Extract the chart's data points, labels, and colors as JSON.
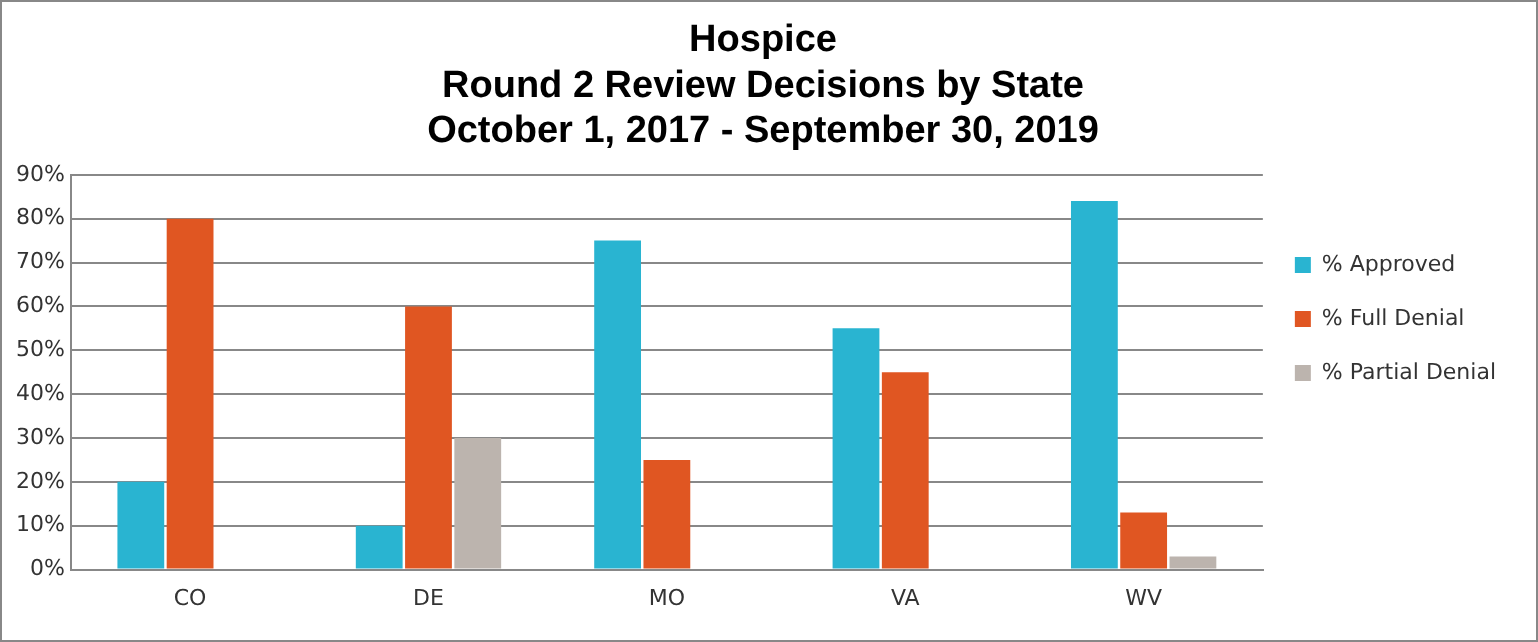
{
  "chart_data": {
    "type": "bar",
    "title": "Hospice\nRound 2 Review Decisions by State\nOctober 1, 2017 - September 30, 2019",
    "categories": [
      "CO",
      "DE",
      "MO",
      "VA",
      "WV"
    ],
    "series": [
      {
        "name": "% Approved",
        "color": "#29b4d1",
        "values": [
          20,
          10,
          75,
          55,
          84
        ]
      },
      {
        "name": "% Full Denial",
        "color": "#e05622",
        "values": [
          80,
          60,
          25,
          45,
          13
        ]
      },
      {
        "name": "% Partial Denial",
        "color": "#bcb4ae",
        "values": [
          0,
          30,
          0,
          0,
          3
        ]
      }
    ],
    "ylim": [
      0,
      90
    ],
    "yticks": [
      {
        "value": 0,
        "label": "0%"
      },
      {
        "value": 10,
        "label": "10%"
      },
      {
        "value": 20,
        "label": "20%"
      },
      {
        "value": 30,
        "label": "30%"
      },
      {
        "value": 40,
        "label": "40%"
      },
      {
        "value": 50,
        "label": "50%"
      },
      {
        "value": 60,
        "label": "60%"
      },
      {
        "value": 70,
        "label": "70%"
      },
      {
        "value": 80,
        "label": "80%"
      },
      {
        "value": 90,
        "label": "90%"
      }
    ],
    "grid": "y",
    "legend": "right"
  }
}
